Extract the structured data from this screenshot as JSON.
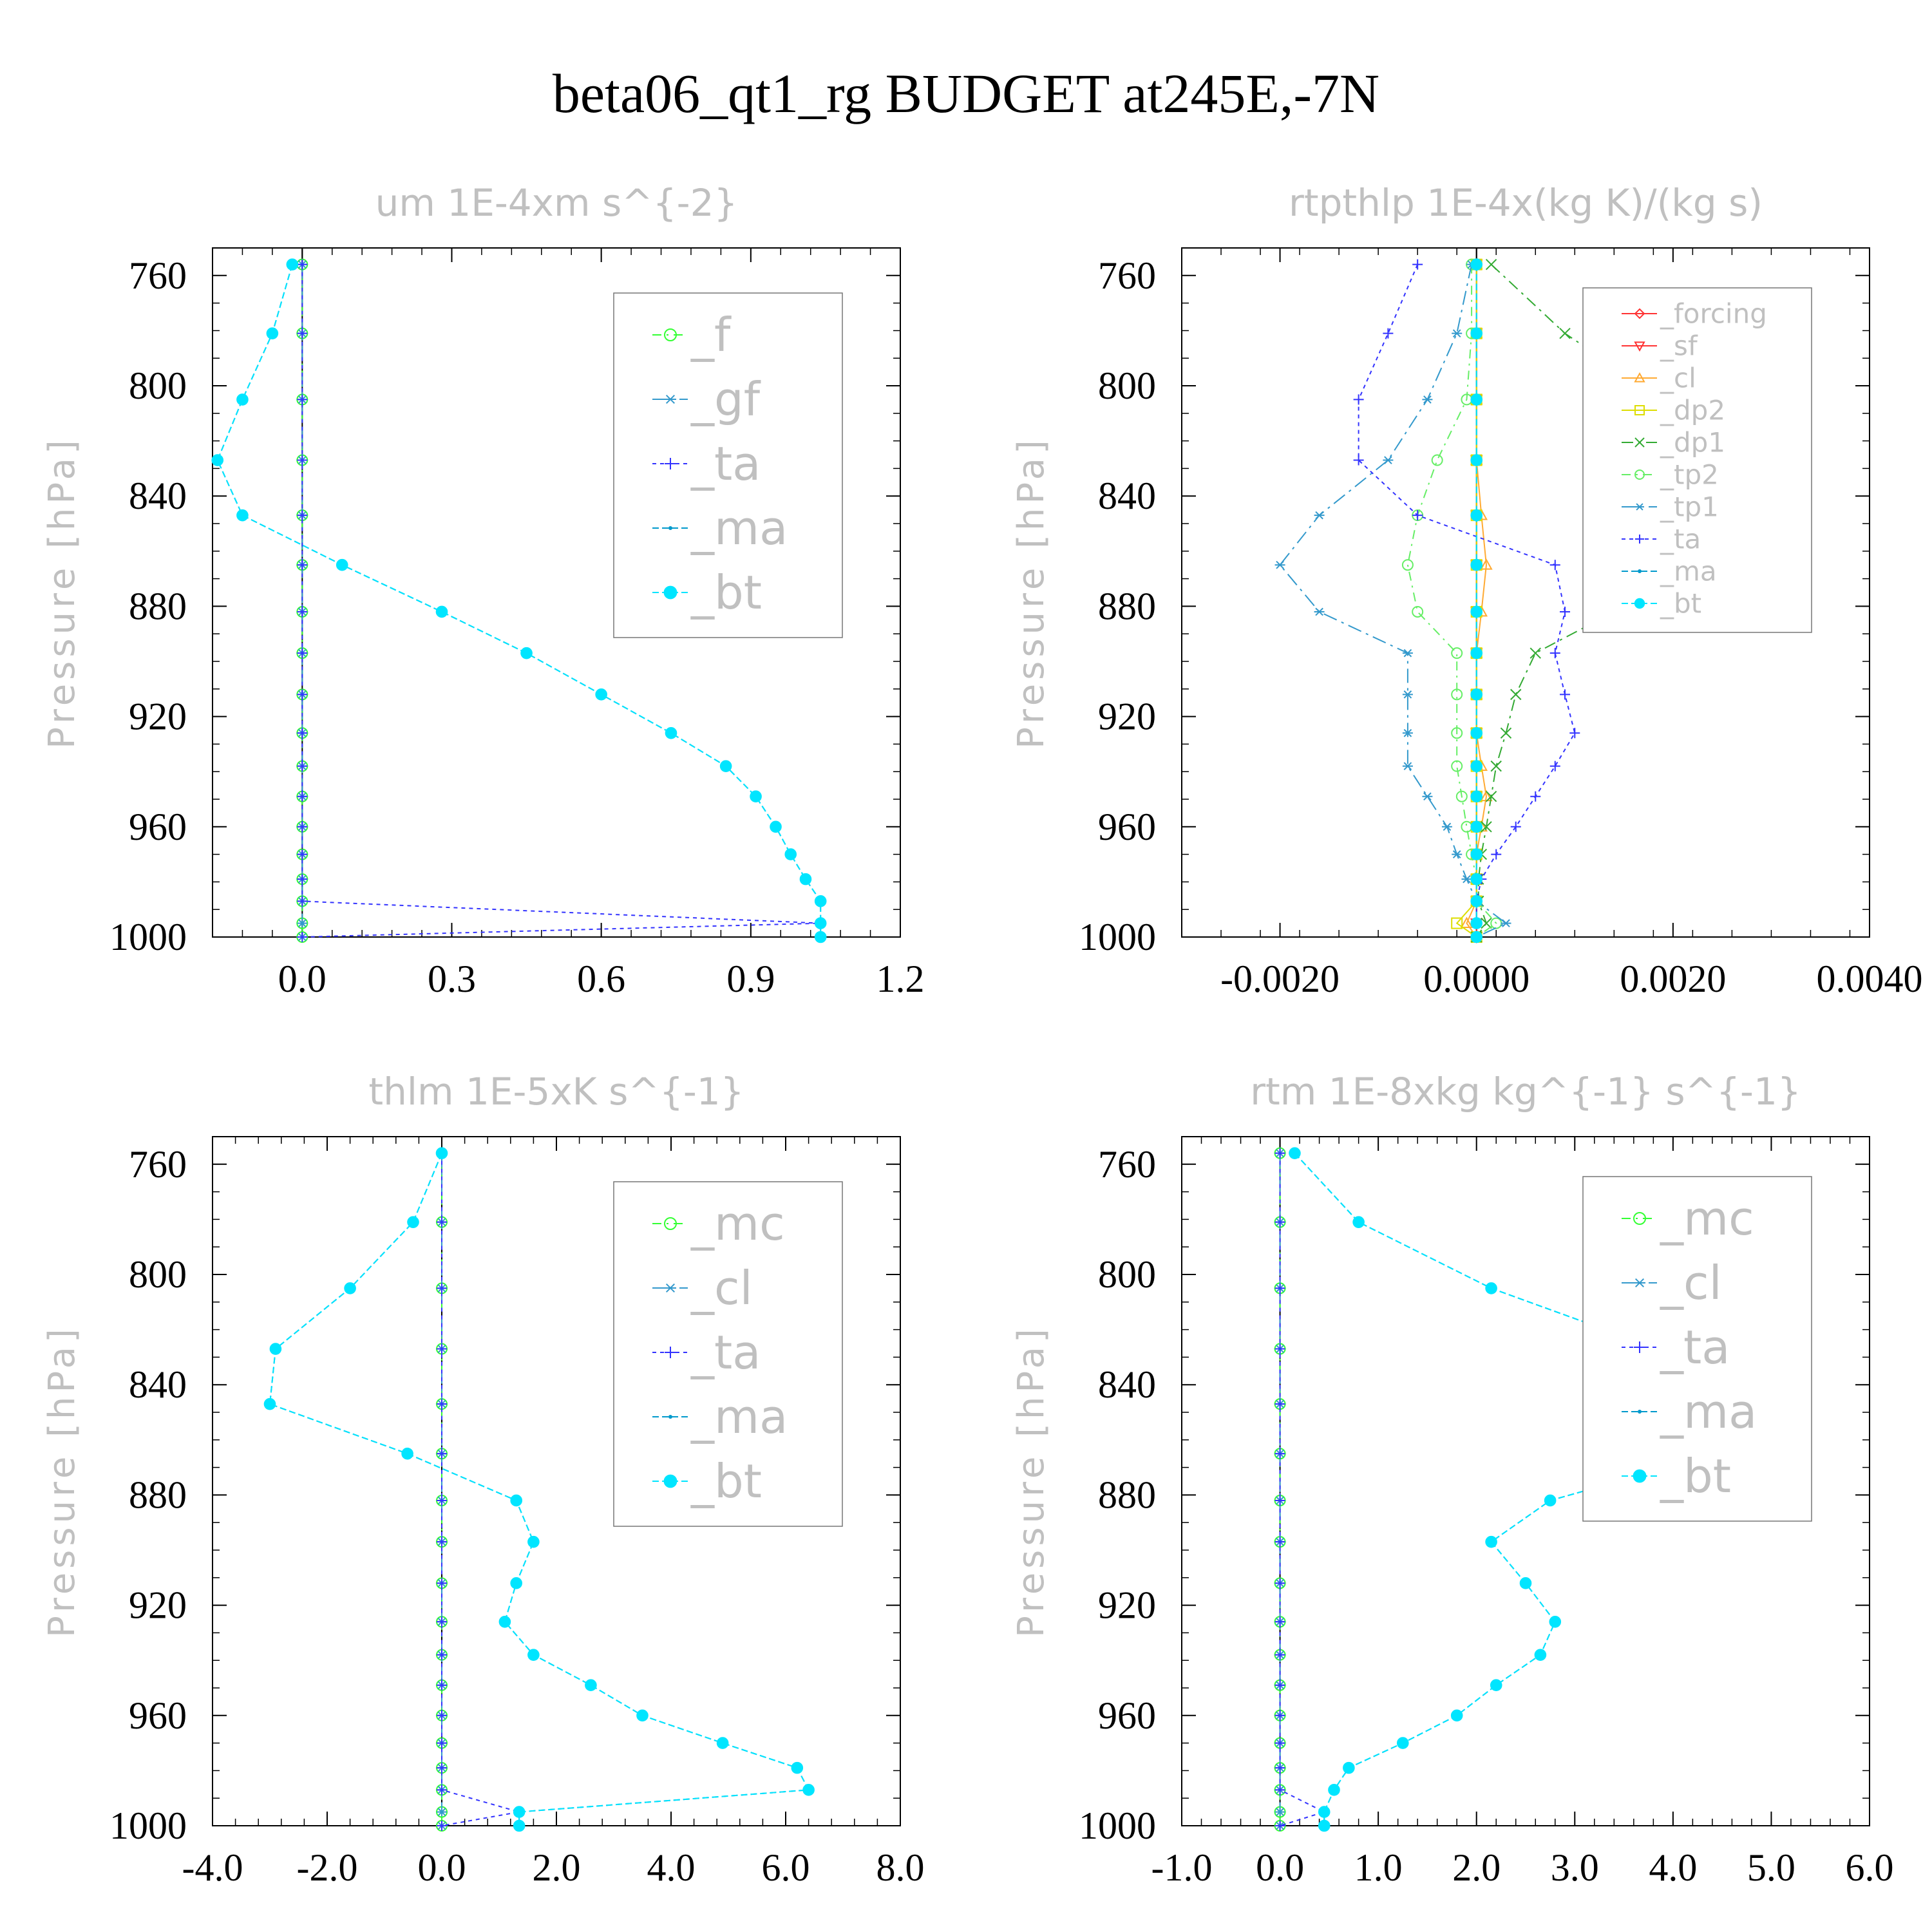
{
  "title": "beta06_qt1_rg  BUDGET at245E,-7N",
  "chart_data": [
    {
      "type": "line",
      "title": "um  1E-4xm s^{-2}",
      "ylabel": "Pressure [hPa]",
      "xlim": [
        -0.18,
        1.2
      ],
      "ylim": [
        1000,
        750
      ],
      "xticks": [
        "0.0",
        "0.3",
        "0.6",
        "0.9",
        "1.2"
      ],
      "xtick_values": [
        0.0,
        0.3,
        0.6,
        0.9,
        1.2
      ],
      "yticks": [
        760,
        800,
        840,
        880,
        920,
        960,
        1000
      ],
      "legend_position": "top-right",
      "y": [
        756,
        781,
        805,
        827,
        847,
        865,
        882,
        897,
        912,
        926,
        938,
        949,
        960,
        970,
        979,
        987,
        995,
        1000
      ],
      "series": [
        {
          "name": "_f",
          "color": "#33ff33",
          "marker": "circle",
          "values": [
            0,
            0,
            0,
            0,
            0,
            0,
            0,
            0,
            0,
            0,
            0,
            0,
            0,
            0,
            0,
            0,
            0,
            0
          ]
        },
        {
          "name": "_gf",
          "color": "#3399cc",
          "marker": "star",
          "values": [
            0,
            0,
            0,
            0,
            0,
            0,
            0,
            0,
            0,
            0,
            0,
            0,
            0,
            0,
            0,
            0,
            0,
            0
          ]
        },
        {
          "name": "_ta",
          "color": "#3333ff",
          "marker": "plus",
          "values": [
            0,
            0,
            0,
            0,
            0,
            0,
            0,
            0,
            0,
            0,
            0,
            0,
            0,
            0,
            0,
            0,
            1.04,
            0
          ]
        },
        {
          "name": "_ma",
          "color": "#0099cc",
          "marker": "dot",
          "values": [
            -0.02,
            -0.06,
            -0.12,
            -0.17,
            -0.12,
            0.08,
            0.28,
            0.45,
            0.6,
            0.74,
            0.85,
            0.91,
            0.95,
            0.98,
            1.01,
            1.04,
            1.04,
            1.04
          ]
        },
        {
          "name": "_bt",
          "color": "#00e5ff",
          "marker": "disc",
          "values": [
            -0.02,
            -0.06,
            -0.12,
            -0.17,
            -0.12,
            0.08,
            0.28,
            0.45,
            0.6,
            0.74,
            0.85,
            0.91,
            0.95,
            0.98,
            1.01,
            1.04,
            1.04,
            1.04
          ]
        }
      ]
    },
    {
      "type": "line",
      "title": "rtpthlp  1E-4x(kg K)/(kg s)",
      "ylabel": "Pressure [hPa]",
      "xlim": [
        -0.003,
        0.004
      ],
      "ylim": [
        1000,
        750
      ],
      "xticks": [
        "-0.0020",
        "0.0000",
        "0.0020",
        "0.0040"
      ],
      "xtick_values": [
        -0.002,
        0.0,
        0.002,
        0.004
      ],
      "yticks": [
        760,
        800,
        840,
        880,
        920,
        960,
        1000
      ],
      "legend_position": "top-right",
      "y": [
        756,
        781,
        805,
        827,
        847,
        865,
        882,
        897,
        912,
        926,
        938,
        949,
        960,
        970,
        979,
        987,
        995,
        1000
      ],
      "series": [
        {
          "name": "_forcing",
          "color": "#ff3333",
          "marker": "diamond",
          "values": [
            0,
            0,
            0,
            0,
            0,
            0,
            0,
            0,
            0,
            0,
            0,
            0,
            0,
            0,
            0,
            0,
            0,
            0
          ]
        },
        {
          "name": "_sf",
          "color": "#ff3333",
          "marker": "tri-down",
          "values": [
            0,
            0,
            0,
            0,
            0,
            0,
            0,
            0,
            0,
            0,
            0,
            0,
            0,
            0,
            0,
            0,
            0,
            0
          ]
        },
        {
          "name": "_cl",
          "color": "#ffaa33",
          "marker": "tri-up",
          "values": [
            0,
            0,
            0,
            0,
            5e-05,
            0.0001,
            5e-05,
            0,
            0,
            0,
            5e-05,
            0.0001,
            5e-05,
            0,
            0,
            0,
            -0.0001,
            0
          ]
        },
        {
          "name": "_dp2",
          "color": "#dddd00",
          "marker": "square",
          "values": [
            0,
            0,
            0,
            0,
            0,
            0,
            0,
            0,
            0,
            0,
            0,
            0,
            0,
            0,
            0,
            0,
            -0.0002,
            0
          ]
        },
        {
          "name": "_dp1",
          "color": "#33aa33",
          "marker": "x",
          "values": [
            0.00015,
            0.0009,
            0.0019,
            0.0027,
            0.0032,
            0.0024,
            0.0014,
            0.0006,
            0.0004,
            0.0003,
            0.0002,
            0.00015,
            0.0001,
            5e-05,
            2e-05,
            2e-05,
            0.0001,
            0
          ]
        },
        {
          "name": "_tp2",
          "color": "#66ee66",
          "marker": "circle",
          "values": [
            -5e-05,
            -5e-05,
            -0.0001,
            -0.0004,
            -0.0006,
            -0.0007,
            -0.0006,
            -0.0002,
            -0.0002,
            -0.0002,
            -0.0002,
            -0.00015,
            -0.0001,
            -5e-05,
            0,
            0,
            0.0002,
            0
          ]
        },
        {
          "name": "_tp1",
          "color": "#3399cc",
          "marker": "star",
          "values": [
            -5e-05,
            -0.0002,
            -0.0005,
            -0.0009,
            -0.0016,
            -0.002,
            -0.0016,
            -0.0007,
            -0.0007,
            -0.0007,
            -0.0007,
            -0.0005,
            -0.0003,
            -0.0002,
            -0.0001,
            0,
            0.0003,
            0
          ]
        },
        {
          "name": "_ta",
          "color": "#3333ff",
          "marker": "plus",
          "values": [
            -0.0006,
            -0.0009,
            -0.0012,
            -0.0012,
            -0.0006,
            0.0008,
            0.0009,
            0.0008,
            0.0009,
            0.001,
            0.0008,
            0.0006,
            0.0004,
            0.0002,
            5e-05,
            0,
            0,
            0
          ]
        },
        {
          "name": "_ma",
          "color": "#0099cc",
          "marker": "dot",
          "values": [
            0,
            0,
            0,
            0,
            0,
            0,
            0,
            0,
            0,
            0,
            0,
            0,
            0,
            0,
            0,
            0,
            0,
            0
          ]
        },
        {
          "name": "_bt",
          "color": "#00e5ff",
          "marker": "disc",
          "values": [
            0,
            0,
            0,
            0,
            0,
            0,
            0,
            0,
            0,
            0,
            0,
            0,
            0,
            0,
            0,
            0,
            0,
            0
          ]
        }
      ]
    },
    {
      "type": "line",
      "title": "thlm  1E-5xK s^{-1}",
      "ylabel": "Pressure [hPa]",
      "xlim": [
        -4.0,
        8.0
      ],
      "ylim": [
        1000,
        750
      ],
      "xticks": [
        "-4.0",
        "-2.0",
        "0.0",
        "2.0",
        "4.0",
        "6.0",
        "8.0"
      ],
      "xtick_values": [
        -4,
        -2,
        0,
        2,
        4,
        6,
        8
      ],
      "yticks": [
        760,
        800,
        840,
        880,
        920,
        960,
        1000
      ],
      "legend_position": "top-right",
      "y": [
        756,
        781,
        805,
        827,
        847,
        865,
        882,
        897,
        912,
        926,
        938,
        949,
        960,
        970,
        979,
        987,
        995,
        1000
      ],
      "series": [
        {
          "name": "_mc",
          "color": "#33ff33",
          "marker": "circle",
          "values": [
            0,
            0,
            0,
            0,
            0,
            0,
            0,
            0,
            0,
            0,
            0,
            0,
            0,
            0,
            0,
            0,
            0,
            0
          ]
        },
        {
          "name": "_cl",
          "color": "#3399cc",
          "marker": "star",
          "values": [
            0,
            0,
            0,
            0,
            0,
            0,
            0,
            0,
            0,
            0,
            0,
            0,
            0,
            0,
            0,
            0,
            0,
            0
          ]
        },
        {
          "name": "_ta",
          "color": "#3333ff",
          "marker": "plus",
          "values": [
            0,
            0,
            0,
            0,
            0,
            0,
            0,
            0,
            0,
            0,
            0,
            0,
            0,
            0,
            0,
            0,
            1.35,
            0
          ]
        },
        {
          "name": "_ma",
          "color": "#0099cc",
          "marker": "dot",
          "values": [
            0,
            -0.5,
            -1.6,
            -2.9,
            -3.0,
            -0.6,
            1.3,
            1.6,
            1.3,
            1.1,
            1.6,
            2.6,
            3.5,
            4.9,
            6.2,
            6.4,
            1.35,
            1.35
          ]
        },
        {
          "name": "_bt",
          "color": "#00e5ff",
          "marker": "disc",
          "values": [
            0,
            -0.5,
            -1.6,
            -2.9,
            -3.0,
            -0.6,
            1.3,
            1.6,
            1.3,
            1.1,
            1.6,
            2.6,
            3.5,
            4.9,
            6.2,
            6.4,
            1.35,
            1.35
          ]
        }
      ]
    },
    {
      "type": "line",
      "title": "rtm  1E-8xkg kg^{-1} s^{-1}",
      "ylabel": "Pressure [hPa]",
      "xlim": [
        -1.0,
        6.0
      ],
      "ylim": [
        1000,
        750
      ],
      "xticks": [
        "-1.0",
        "0.0",
        "1.0",
        "2.0",
        "3.0",
        "4.0",
        "5.0",
        "6.0"
      ],
      "xtick_values": [
        -1,
        0,
        1,
        2,
        3,
        4,
        5,
        6
      ],
      "yticks": [
        760,
        800,
        840,
        880,
        920,
        960,
        1000
      ],
      "legend_position": "top-right",
      "y": [
        756,
        781,
        805,
        827,
        847,
        865,
        873,
        882,
        897,
        912,
        926,
        938,
        949,
        960,
        970,
        979,
        987,
        995,
        1000
      ],
      "series": [
        {
          "name": "_mc",
          "color": "#33ff33",
          "marker": "circle",
          "values": [
            0,
            0,
            0,
            0,
            0,
            0,
            null,
            0,
            0,
            0,
            0,
            0,
            0,
            0,
            0,
            0,
            0,
            0,
            0
          ]
        },
        {
          "name": "_cl",
          "color": "#3399cc",
          "marker": "star",
          "values": [
            0,
            0,
            0,
            0,
            0,
            0,
            null,
            0,
            0,
            0,
            0,
            0,
            0,
            0,
            0,
            0,
            0,
            0,
            0
          ]
        },
        {
          "name": "_ta",
          "color": "#3333ff",
          "marker": "plus",
          "values": [
            0,
            0,
            0,
            0,
            0,
            0,
            null,
            0,
            0,
            0,
            0,
            0,
            0,
            0,
            0,
            0,
            0,
            0.45,
            0
          ]
        },
        {
          "name": "_ma",
          "color": "#0099cc",
          "marker": "dot",
          "values": [
            0.15,
            0.8,
            2.15,
            3.85,
            5.35,
            4.7,
            3.65,
            2.75,
            2.15,
            2.5,
            2.8,
            2.65,
            2.2,
            1.8,
            1.25,
            0.7,
            0.55,
            0.45,
            0.45
          ]
        },
        {
          "name": "_bt",
          "color": "#00e5ff",
          "marker": "disc",
          "values": [
            0.15,
            0.8,
            2.15,
            3.85,
            5.35,
            4.7,
            3.65,
            2.75,
            2.15,
            2.5,
            2.8,
            2.65,
            2.2,
            1.8,
            1.25,
            0.7,
            0.55,
            0.45,
            0.45
          ]
        }
      ]
    }
  ]
}
